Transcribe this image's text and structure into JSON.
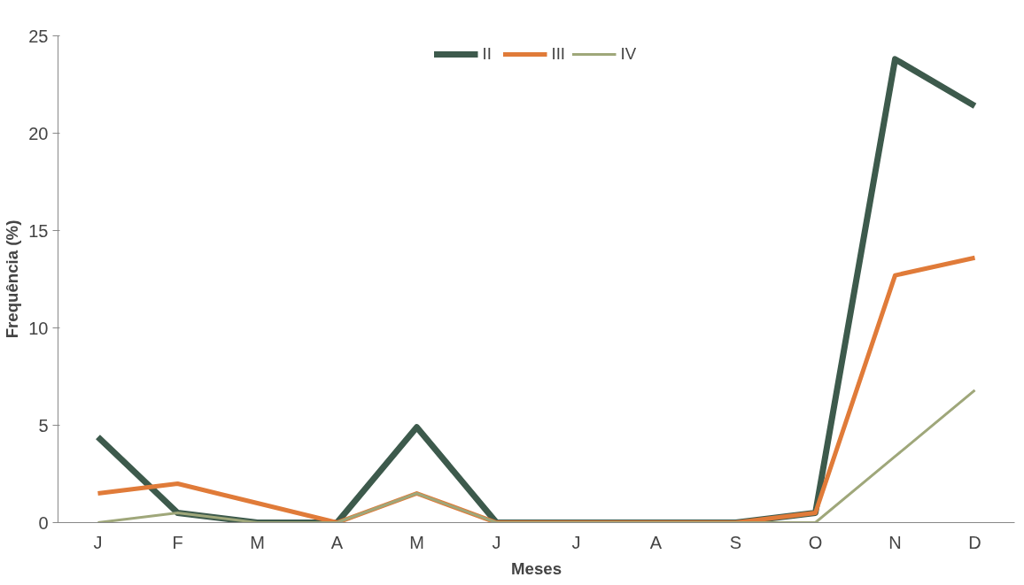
{
  "chart_data": {
    "type": "line",
    "xlabel": "Meses",
    "ylabel": "Frequência (%)",
    "categories": [
      "J",
      "F",
      "M",
      "A",
      "M",
      "J",
      "J",
      "A",
      "S",
      "O",
      "N",
      "D"
    ],
    "series": [
      {
        "name": "II",
        "color": "#3d5a4c",
        "values": [
          4.4,
          0.5,
          0,
          0,
          4.9,
          0,
          0,
          0,
          0,
          0.5,
          23.8,
          21.4
        ]
      },
      {
        "name": "III",
        "color": "#e07b39",
        "values": [
          1.5,
          2.0,
          1.0,
          0,
          1.5,
          0,
          0,
          0,
          0,
          0.5,
          12.7,
          13.6
        ]
      },
      {
        "name": "IV",
        "color": "#9fa77a",
        "values": [
          0,
          0.5,
          0,
          0,
          1.5,
          0,
          0,
          0,
          0,
          0,
          3.4,
          6.8
        ]
      }
    ],
    "ylim": [
      0,
      25
    ],
    "yticks": [
      0,
      5,
      10,
      15,
      20,
      25
    ],
    "grid": false,
    "legend": "top",
    "marker": "none",
    "line_style": "solid"
  }
}
